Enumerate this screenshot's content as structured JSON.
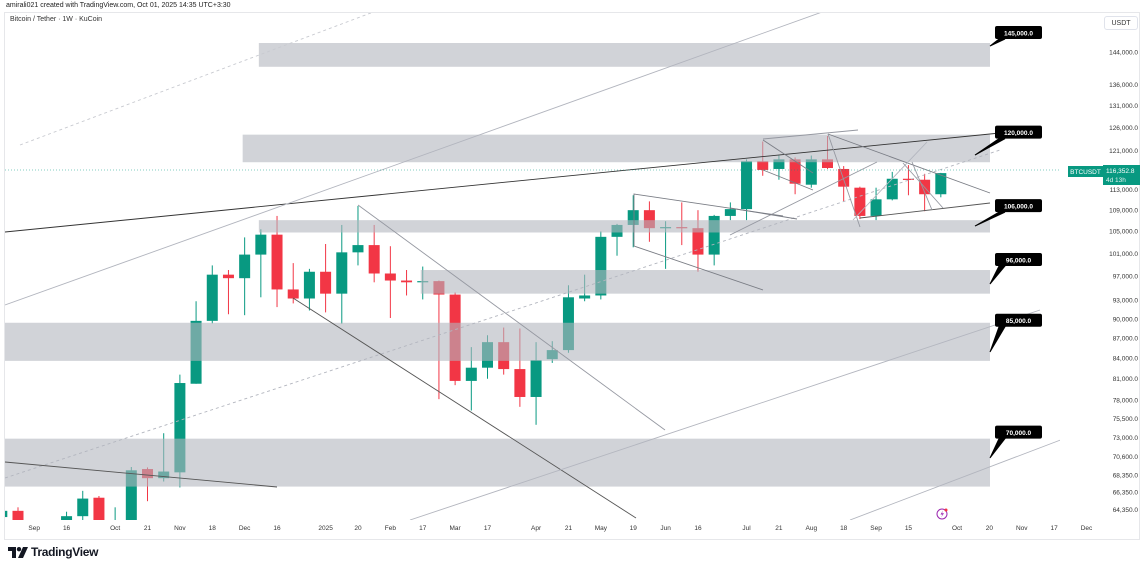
{
  "attribution": "amirali021 created with TradingView.com, Oct 01, 2025 14:35 UTC+3:30",
  "brand": "TradingView",
  "colors": {
    "up": "#089981",
    "down": "#f23645",
    "zone": "#b2b5be",
    "callout": "#000000",
    "event": "#9c27b0"
  },
  "icons": {
    "brand": "tradingview-logo-icon",
    "event": "lightning-event-icon"
  },
  "chart_data": {
    "type": "candlestick",
    "title": "Bitcoin / Tether · 1W · KuCoin",
    "currency": "USDT",
    "symbol_label": "BTCUSDT",
    "last_price": "116,352.8",
    "countdown": "4d 13h",
    "scale": "log",
    "ylim": [
      63000,
      150000
    ],
    "price_unit": "thousand USDT",
    "ohlc_k": [
      [
        63.5,
        64.4,
        62.8,
        64.2
      ],
      [
        64.2,
        64.6,
        62.0,
        62.6
      ],
      [
        62.6,
        63.0,
        60.0,
        61.0
      ],
      [
        61.0,
        62.8,
        60.3,
        62.2
      ],
      [
        62.2,
        64.1,
        61.5,
        63.6
      ],
      [
        63.6,
        66.5,
        63.0,
        65.6
      ],
      [
        65.7,
        65.9,
        61.5,
        62.0
      ],
      [
        62.0,
        64.6,
        60.8,
        62.9
      ],
      [
        62.9,
        69.35,
        62.3,
        68.95
      ],
      [
        69.1,
        69.3,
        65.3,
        68.0
      ],
      [
        68.0,
        73.6,
        67.6,
        68.8
      ],
      [
        68.7,
        81.6,
        66.9,
        80.4
      ],
      [
        80.3,
        92.85,
        80.3,
        89.7
      ],
      [
        89.7,
        98.9,
        89.3,
        97.3
      ],
      [
        97.3,
        98.1,
        90.75,
        96.7
      ],
      [
        96.7,
        103.9,
        90.6,
        100.8
      ],
      [
        100.8,
        105.4,
        93.5,
        104.4
      ],
      [
        104.4,
        107.9,
        91.9,
        94.8
      ],
      [
        94.8,
        99.3,
        92.5,
        93.3
      ],
      [
        93.3,
        98.3,
        91.35,
        97.8
      ],
      [
        97.8,
        102.7,
        91.05,
        94.1
      ],
      [
        94.1,
        106.2,
        89.25,
        101.2
      ],
      [
        101.2,
        109.8,
        98.9,
        102.5
      ],
      [
        102.5,
        106.2,
        96.0,
        97.5
      ],
      [
        97.5,
        102.3,
        90.15,
        96.3
      ],
      [
        96.3,
        98.1,
        93.8,
        96.0
      ],
      [
        96.0,
        98.7,
        93.15,
        96.2
      ],
      [
        96.2,
        96.3,
        78.15,
        93.95
      ],
      [
        93.95,
        94.3,
        80.1,
        80.7
      ],
      [
        80.7,
        85.65,
        76.6,
        82.6
      ],
      [
        82.6,
        87.45,
        81.0,
        86.4
      ],
      [
        86.4,
        88.65,
        81.6,
        82.4
      ],
      [
        82.4,
        88.5,
        77.1,
        78.45
      ],
      [
        78.45,
        86.4,
        74.7,
        83.7
      ],
      [
        83.85,
        86.55,
        83.3,
        85.2
      ],
      [
        85.2,
        95.5,
        84.8,
        93.5
      ],
      [
        93.3,
        97.3,
        92.85,
        93.8
      ],
      [
        93.8,
        105.0,
        93.15,
        104.0
      ],
      [
        104.0,
        106.4,
        100.6,
        106.2
      ],
      [
        106.2,
        111.9,
        102.1,
        109.0
      ],
      [
        109.0,
        110.7,
        103.1,
        105.6
      ],
      [
        105.6,
        106.9,
        98.3,
        105.8
      ],
      [
        105.8,
        110.5,
        102.5,
        105.6
      ],
      [
        105.6,
        109.0,
        97.8,
        100.8
      ],
      [
        100.8,
        108.1,
        98.9,
        107.9
      ],
      [
        107.9,
        110.5,
        107.1,
        109.2
      ],
      [
        109.2,
        119.2,
        107.1,
        118.8
      ],
      [
        118.8,
        123.0,
        115.8,
        117.0
      ],
      [
        117.2,
        120.0,
        115.0,
        119.2
      ],
      [
        119.2,
        119.6,
        112.1,
        114.2
      ],
      [
        114.0,
        120.0,
        113.4,
        119.2
      ],
      [
        119.2,
        124.2,
        117.2,
        117.4
      ],
      [
        117.2,
        117.8,
        110.7,
        113.6
      ],
      [
        113.4,
        113.6,
        107.3,
        107.9
      ],
      [
        107.9,
        113.4,
        107.1,
        111.1
      ],
      [
        111.1,
        116.6,
        110.9,
        115.2
      ],
      [
        115.2,
        118.0,
        111.9,
        115.0
      ],
      [
        115.0,
        116.2,
        108.8,
        112.1
      ],
      [
        112.1,
        116.4,
        111.5,
        116.35
      ]
    ],
    "y_ticks": [
      {
        "v": 144000,
        "label": "144,000.0"
      },
      {
        "v": 136000,
        "label": "136,000.0"
      },
      {
        "v": 131000,
        "label": "131,000.0"
      },
      {
        "v": 126000,
        "label": "126,000.0"
      },
      {
        "v": 121000,
        "label": "121,000.0"
      },
      {
        "v": 113000,
        "label": "113,000.0"
      },
      {
        "v": 109000,
        "label": "109,000.0"
      },
      {
        "v": 105000,
        "label": "105,000.0"
      },
      {
        "v": 101000,
        "label": "101,000.0"
      },
      {
        "v": 97000,
        "label": "97,000.0"
      },
      {
        "v": 93000,
        "label": "93,000.0"
      },
      {
        "v": 90000,
        "label": "90,000.0"
      },
      {
        "v": 87000,
        "label": "87,000.0"
      },
      {
        "v": 84000,
        "label": "84,000.0"
      },
      {
        "v": 81000,
        "label": "81,000.0"
      },
      {
        "v": 78000,
        "label": "78,000.0"
      },
      {
        "v": 75500,
        "label": "75,500.0"
      },
      {
        "v": 73000,
        "label": "73,000.0"
      },
      {
        "v": 70600,
        "label": "70,600.0"
      },
      {
        "v": 68350,
        "label": "68,350.0"
      },
      {
        "v": 66350,
        "label": "66,350.0"
      },
      {
        "v": 64350,
        "label": "64,350.0"
      }
    ],
    "x_ticks": [
      {
        "bar": 2,
        "label": "Sep"
      },
      {
        "bar": 4,
        "label": "16"
      },
      {
        "bar": 7,
        "label": "Oct"
      },
      {
        "bar": 9,
        "label": "21"
      },
      {
        "bar": 11,
        "label": "Nov"
      },
      {
        "bar": 13,
        "label": "18"
      },
      {
        "bar": 15,
        "label": "Dec"
      },
      {
        "bar": 17,
        "label": "16"
      },
      {
        "bar": 20,
        "label": "2025"
      },
      {
        "bar": 22,
        "label": "20"
      },
      {
        "bar": 24,
        "label": "Feb"
      },
      {
        "bar": 26,
        "label": "17"
      },
      {
        "bar": 28,
        "label": "Mar"
      },
      {
        "bar": 30,
        "label": "17"
      },
      {
        "bar": 33,
        "label": "Apr"
      },
      {
        "bar": 35,
        "label": "21"
      },
      {
        "bar": 37,
        "label": "May"
      },
      {
        "bar": 39,
        "label": "19"
      },
      {
        "bar": 41,
        "label": "Jun"
      },
      {
        "bar": 43,
        "label": "16"
      },
      {
        "bar": 46,
        "label": "Jul"
      },
      {
        "bar": 48,
        "label": "21"
      },
      {
        "bar": 50,
        "label": "Aug"
      },
      {
        "bar": 52,
        "label": "18"
      },
      {
        "bar": 54,
        "label": "Sep"
      },
      {
        "bar": 56,
        "label": "15"
      },
      {
        "bar": 59,
        "label": "Oct"
      },
      {
        "bar": 61,
        "label": "20"
      },
      {
        "bar": 63,
        "label": "Nov"
      },
      {
        "bar": 65,
        "label": "17"
      },
      {
        "bar": 67,
        "label": "Dec"
      }
    ],
    "zones": [
      {
        "label": "145,000.0",
        "from_bar": 16,
        "to_bar": 61,
        "top": 146300,
        "bottom": 140300
      },
      {
        "label": "120,000.0",
        "from_bar": 15,
        "to_bar": 61,
        "top": 124500,
        "bottom": 118600
      },
      {
        "label": "106,000.0",
        "from_bar": 16,
        "to_bar": 61,
        "top": 107100,
        "bottom": 104800
      },
      {
        "label": "96,000.0",
        "from_bar": 26,
        "to_bar": 61,
        "top": 98100,
        "bottom": 94100
      },
      {
        "label": "85,000.0",
        "from_bar": 0,
        "to_bar": 61,
        "top": 89400,
        "bottom": 83600
      },
      {
        "label": "70,000.0",
        "from_bar": 0,
        "to_bar": 61,
        "top": 72900,
        "bottom": 67000
      }
    ]
  }
}
